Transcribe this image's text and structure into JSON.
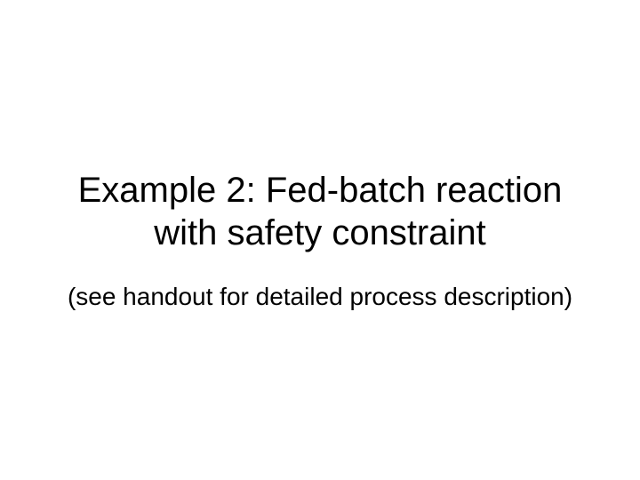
{
  "slide": {
    "title": "Example 2: Fed-batch reaction with safety constraint",
    "subtitle": "(see handout for detailed process description)",
    "background_color": "#ffffff",
    "text_color": "#000000",
    "title_fontsize": 40,
    "subtitle_fontsize": 28,
    "font_family": "Arial"
  }
}
